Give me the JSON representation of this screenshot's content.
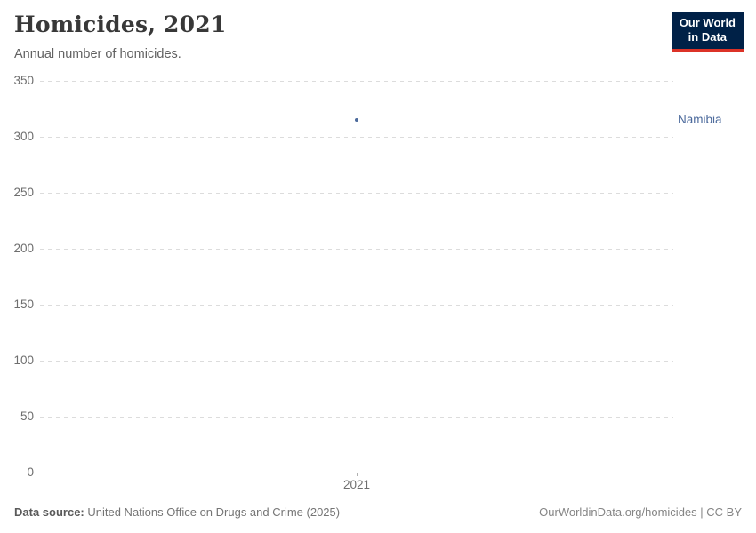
{
  "header": {
    "title": "Homicides, 2021",
    "subtitle": "Annual number of homicides.",
    "logo": {
      "line1": "Our World",
      "line2": "in Data"
    }
  },
  "chart_data": {
    "type": "scatter",
    "title": "Homicides, 2021",
    "subtitle": "Annual number of homicides.",
    "x": [
      2021
    ],
    "series": [
      {
        "name": "Namibia",
        "x": [
          2021
        ],
        "values": [
          315
        ]
      }
    ],
    "xticks": [
      "2021"
    ],
    "yticks": [
      0,
      50,
      100,
      150,
      200,
      250,
      300,
      350
    ],
    "ylim": [
      0,
      350
    ],
    "xlabel": "",
    "ylabel": "",
    "grid": "horizontal-dashed",
    "legend_position": "entity-label-right",
    "point_color": "#4c6a9c",
    "entity_label_color": "#4c6a9c"
  },
  "colors": {
    "logo_background": "#002147",
    "logo_underline": "#dc3227",
    "accent": "#4c6a9c",
    "gridline": "#dcdcdc",
    "axis_line": "#8c8c8c",
    "tick_label": "#6e6e6e"
  },
  "footer": {
    "source_label": "Data source:",
    "source_text": " United Nations Office on Drugs and Crime (2025)",
    "attribution": "OurWorldinData.org/homicides | CC BY"
  }
}
